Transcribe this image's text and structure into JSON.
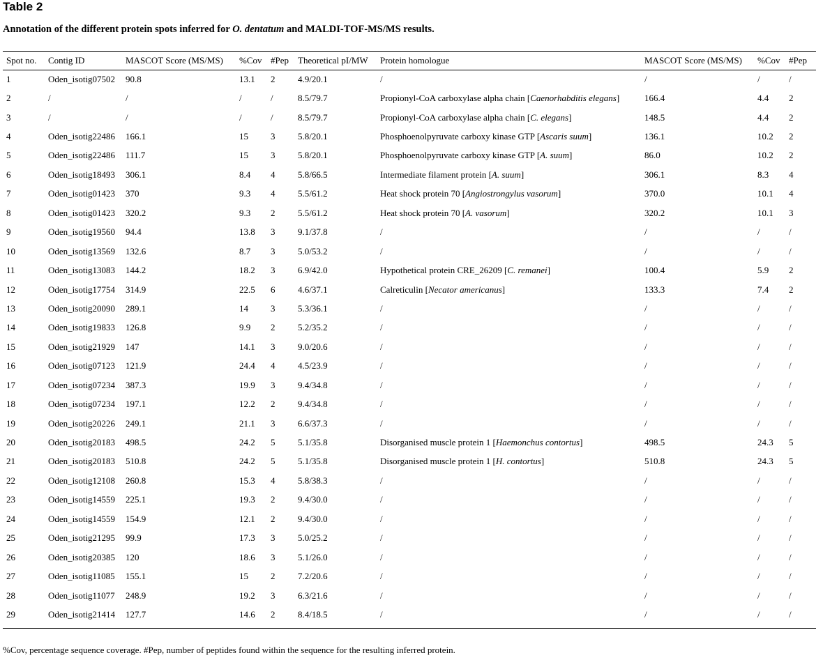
{
  "title": "Table 2",
  "caption": {
    "prefix": "Annotation of the different protein spots inferred for ",
    "species": "O. dentatum",
    "suffix": " and MALDI-TOF-MS/MS results."
  },
  "columns": [
    "Spot no.",
    "Contig ID",
    "MASCOT Score (MS/MS)",
    "%Cov",
    "#Pep",
    "Theoretical pI/MW",
    "Protein homologue",
    "MASCOT Score (MS/MS)",
    "%Cov",
    "#Pep"
  ],
  "rows": [
    {
      "spot": "1",
      "contig": "Oden_isotig07502",
      "score": "90.8",
      "cov": "13.1",
      "pep": "2",
      "pimw": "4.9/20.1",
      "homologue": "/",
      "species": "",
      "score2": "/",
      "cov2": "/",
      "pep2": "/"
    },
    {
      "spot": "2",
      "contig": "/",
      "score": "/",
      "cov": "/",
      "pep": "/",
      "pimw": "8.5/79.7",
      "homologue": "Propionyl-CoA carboxylase alpha chain",
      "species": "Caenorhabditis elegans",
      "score2": "166.4",
      "cov2": "4.4",
      "pep2": "2"
    },
    {
      "spot": "3",
      "contig": "/",
      "score": "/",
      "cov": "/",
      "pep": "/",
      "pimw": "8.5/79.7",
      "homologue": "Propionyl-CoA carboxylase alpha chain",
      "species": "C. elegans",
      "score2": "148.5",
      "cov2": "4.4",
      "pep2": "2"
    },
    {
      "spot": "4",
      "contig": "Oden_isotig22486",
      "score": "166.1",
      "cov": "15",
      "pep": "3",
      "pimw": "5.8/20.1",
      "homologue": "Phosphoenolpyruvate carboxy kinase GTP",
      "species": "Ascaris suum",
      "score2": "136.1",
      "cov2": "10.2",
      "pep2": "2"
    },
    {
      "spot": "5",
      "contig": "Oden_isotig22486",
      "score": "111.7",
      "cov": "15",
      "pep": "3",
      "pimw": "5.8/20.1",
      "homologue": "Phosphoenolpyruvate carboxy kinase GTP",
      "species": "A. suum",
      "score2": "86.0",
      "cov2": "10.2",
      "pep2": "2"
    },
    {
      "spot": "6",
      "contig": "Oden_isotig18493",
      "score": "306.1",
      "cov": "8.4",
      "pep": "4",
      "pimw": "5.8/66.5",
      "homologue": "Intermediate filament protein",
      "species": "A. suum",
      "score2": "306.1",
      "cov2": "8.3",
      "pep2": "4"
    },
    {
      "spot": "7",
      "contig": "Oden_isotig01423",
      "score": "370",
      "cov": "9.3",
      "pep": "4",
      "pimw": "5.5/61.2",
      "homologue": "Heat shock protein 70",
      "species": "Angiostrongylus vasorum",
      "score2": "370.0",
      "cov2": "10.1",
      "pep2": "4"
    },
    {
      "spot": "8",
      "contig": "Oden_isotig01423",
      "score": "320.2",
      "cov": "9.3",
      "pep": "2",
      "pimw": "5.5/61.2",
      "homologue": "Heat shock protein 70",
      "species": "A. vasorum",
      "score2": "320.2",
      "cov2": "10.1",
      "pep2": "3"
    },
    {
      "spot": "9",
      "contig": "Oden_isotig19560",
      "score": "94.4",
      "cov": "13.8",
      "pep": "3",
      "pimw": "9.1/37.8",
      "homologue": "/",
      "species": "",
      "score2": "/",
      "cov2": "/",
      "pep2": "/"
    },
    {
      "spot": "10",
      "contig": "Oden_isotig13569",
      "score": "132.6",
      "cov": "8.7",
      "pep": "3",
      "pimw": "5.0/53.2",
      "homologue": "/",
      "species": "",
      "score2": "/",
      "cov2": "/",
      "pep2": "/"
    },
    {
      "spot": "11",
      "contig": "Oden_isotig13083",
      "score": "144.2",
      "cov": "18.2",
      "pep": "3",
      "pimw": "6.9/42.0",
      "homologue": "Hypothetical protein CRE_26209",
      "species": "C. remanei",
      "score2": "100.4",
      "cov2": "5.9",
      "pep2": "2"
    },
    {
      "spot": "12",
      "contig": "Oden_isotig17754",
      "score": "314.9",
      "cov": "22.5",
      "pep": "6",
      "pimw": "4.6/37.1",
      "homologue": "Calreticulin",
      "species": "Necator americanus",
      "score2": "133.3",
      "cov2": "7.4",
      "pep2": "2"
    },
    {
      "spot": "13",
      "contig": "Oden_isotig20090",
      "score": "289.1",
      "cov": "14",
      "pep": "3",
      "pimw": "5.3/36.1",
      "homologue": "/",
      "species": "",
      "score2": "/",
      "cov2": "/",
      "pep2": "/"
    },
    {
      "spot": "14",
      "contig": "Oden_isotig19833",
      "score": "126.8",
      "cov": "9.9",
      "pep": "2",
      "pimw": "5.2/35.2",
      "homologue": "/",
      "species": "",
      "score2": "/",
      "cov2": "/",
      "pep2": "/"
    },
    {
      "spot": "15",
      "contig": "Oden_isotig21929",
      "score": "147",
      "cov": "14.1",
      "pep": "3",
      "pimw": "9.0/20.6",
      "homologue": "/",
      "species": "",
      "score2": "/",
      "cov2": "/",
      "pep2": "/"
    },
    {
      "spot": "16",
      "contig": "Oden_isotig07123",
      "score": "121.9",
      "cov": "24.4",
      "pep": "4",
      "pimw": "4.5/23.9",
      "homologue": "/",
      "species": "",
      "score2": "/",
      "cov2": "/",
      "pep2": "/"
    },
    {
      "spot": "17",
      "contig": "Oden_isotig07234",
      "score": "387.3",
      "cov": "19.9",
      "pep": "3",
      "pimw": "9.4/34.8",
      "homologue": "/",
      "species": "",
      "score2": "/",
      "cov2": "/",
      "pep2": "/"
    },
    {
      "spot": "18",
      "contig": "Oden_isotig07234",
      "score": "197.1",
      "cov": "12.2",
      "pep": "2",
      "pimw": "9.4/34.8",
      "homologue": "/",
      "species": "",
      "score2": "/",
      "cov2": "/",
      "pep2": "/"
    },
    {
      "spot": "19",
      "contig": "Oden_isotig20226",
      "score": "249.1",
      "cov": "21.1",
      "pep": "3",
      "pimw": "6.6/37.3",
      "homologue": "/",
      "species": "",
      "score2": "/",
      "cov2": "/",
      "pep2": "/"
    },
    {
      "spot": "20",
      "contig": "Oden_isotig20183",
      "score": "498.5",
      "cov": "24.2",
      "pep": "5",
      "pimw": "5.1/35.8",
      "homologue": "Disorganised muscle protein 1",
      "species": "Haemonchus contortus",
      "score2": "498.5",
      "cov2": "24.3",
      "pep2": "5"
    },
    {
      "spot": "21",
      "contig": "Oden_isotig20183",
      "score": "510.8",
      "cov": "24.2",
      "pep": "5",
      "pimw": "5.1/35.8",
      "homologue": "Disorganised muscle protein 1",
      "species": "H. contortus",
      "score2": "510.8",
      "cov2": "24.3",
      "pep2": "5"
    },
    {
      "spot": "22",
      "contig": "Oden_isotig12108",
      "score": "260.8",
      "cov": "15.3",
      "pep": "4",
      "pimw": "5.8/38.3",
      "homologue": "/",
      "species": "",
      "score2": "/",
      "cov2": "/",
      "pep2": "/"
    },
    {
      "spot": "23",
      "contig": "Oden_isotig14559",
      "score": "225.1",
      "cov": "19.3",
      "pep": "2",
      "pimw": "9.4/30.0",
      "homologue": "/",
      "species": "",
      "score2": "/",
      "cov2": "/",
      "pep2": "/"
    },
    {
      "spot": "24",
      "contig": "Oden_isotig14559",
      "score": "154.9",
      "cov": "12.1",
      "pep": "2",
      "pimw": "9.4/30.0",
      "homologue": "/",
      "species": "",
      "score2": "/",
      "cov2": "/",
      "pep2": "/"
    },
    {
      "spot": "25",
      "contig": "Oden_isotig21295",
      "score": "99.9",
      "cov": "17.3",
      "pep": "3",
      "pimw": "5.0/25.2",
      "homologue": "/",
      "species": "",
      "score2": "/",
      "cov2": "/",
      "pep2": "/"
    },
    {
      "spot": "26",
      "contig": "Oden_isotig20385",
      "score": "120",
      "cov": "18.6",
      "pep": "3",
      "pimw": "5.1/26.0",
      "homologue": "/",
      "species": "",
      "score2": "/",
      "cov2": "/",
      "pep2": "/"
    },
    {
      "spot": "27",
      "contig": "Oden_isotig11085",
      "score": "155.1",
      "cov": "15",
      "pep": "2",
      "pimw": "7.2/20.6",
      "homologue": "/",
      "species": "",
      "score2": "/",
      "cov2": "/",
      "pep2": "/"
    },
    {
      "spot": "28",
      "contig": "Oden_isotig11077",
      "score": "248.9",
      "cov": "19.2",
      "pep": "3",
      "pimw": "6.3/21.6",
      "homologue": "/",
      "species": "",
      "score2": "/",
      "cov2": "/",
      "pep2": "/"
    },
    {
      "spot": "29",
      "contig": "Oden_isotig21414",
      "score": "127.7",
      "cov": "14.6",
      "pep": "2",
      "pimw": "8.4/18.5",
      "homologue": "/",
      "species": "",
      "score2": "/",
      "cov2": "/",
      "pep2": "/"
    }
  ],
  "footnote": "%Cov, percentage sequence coverage. #Pep, number of peptides found within the sequence for the resulting inferred protein."
}
